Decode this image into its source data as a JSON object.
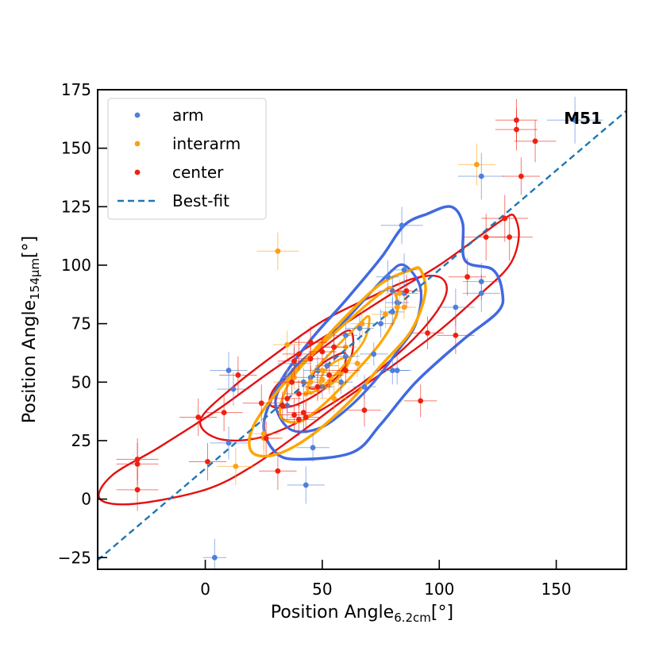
{
  "chart_data": {
    "type": "scatter",
    "annotation": "M51",
    "xlabel": "Position Angle",
    "xlabel_sub": "6.2cm",
    "xlabel_unit": "[°]",
    "ylabel": "Position Angle",
    "ylabel_sub": "154μm",
    "ylabel_unit": "[°]",
    "xlim": [
      -46,
      180
    ],
    "ylim": [
      -30,
      175
    ],
    "xticks": [
      0,
      50,
      100,
      150
    ],
    "yticks": [
      -25,
      0,
      25,
      50,
      75,
      100,
      125,
      150,
      175
    ],
    "xtick_labels": [
      "0",
      "50",
      "100",
      "150"
    ],
    "ytick_labels": [
      "−25",
      "0",
      "25",
      "50",
      "75",
      "100",
      "125",
      "150",
      "175"
    ],
    "legend_position": "upper-left",
    "colors": {
      "arm": "#4f7fd8",
      "interarm": "#ff9f14",
      "center": "#f02010",
      "best_fit": "#1f77b4",
      "arm_contour": "#4169e1",
      "interarm_contour": "#ffa500",
      "center_contour": "#e41010"
    },
    "legend": [
      {
        "key": "arm",
        "label": "arm"
      },
      {
        "key": "interarm",
        "label": "interarm"
      },
      {
        "key": "center",
        "label": "center"
      },
      {
        "key": "best_fit",
        "label": "Best-fit"
      }
    ],
    "best_fit": {
      "slope": 0.85,
      "intercept": 13
    },
    "series": [
      {
        "name": "arm",
        "points": [
          [
            84,
            117,
            9,
            8
          ],
          [
            85,
            98,
            6,
            7
          ],
          [
            78,
            95,
            5,
            7
          ],
          [
            80,
            89,
            6,
            6
          ],
          [
            85,
            88,
            6,
            6
          ],
          [
            82,
            84,
            5,
            5
          ],
          [
            80,
            80,
            5,
            6
          ],
          [
            75,
            75,
            6,
            6
          ],
          [
            66,
            73,
            6,
            6
          ],
          [
            60,
            70,
            5,
            5
          ],
          [
            55,
            65,
            5,
            6
          ],
          [
            72,
            62,
            6,
            5
          ],
          [
            60,
            61,
            6,
            6
          ],
          [
            52,
            57,
            5,
            5
          ],
          [
            48,
            55,
            6,
            6
          ],
          [
            45,
            52,
            6,
            5
          ],
          [
            42,
            50,
            6,
            6
          ],
          [
            58,
            50,
            5,
            5
          ],
          [
            50,
            48,
            5,
            5
          ],
          [
            68,
            48,
            5,
            5
          ],
          [
            38,
            58,
            7,
            7
          ],
          [
            80,
            55,
            7,
            6
          ],
          [
            82,
            55,
            6,
            6
          ],
          [
            35,
            40,
            6,
            6
          ],
          [
            46,
            22,
            7,
            6
          ],
          [
            43,
            6,
            8,
            8
          ],
          [
            10,
            55,
            8,
            8
          ],
          [
            12,
            47,
            7,
            7
          ],
          [
            10,
            24,
            8,
            7
          ],
          [
            118,
            138,
            10,
            10
          ],
          [
            118,
            93,
            8,
            8
          ],
          [
            118,
            88,
            8,
            8
          ],
          [
            107,
            82,
            8,
            8
          ],
          [
            158,
            162,
            12,
            10
          ],
          [
            4,
            -25,
            5,
            8
          ]
        ]
      },
      {
        "name": "interarm",
        "points": [
          [
            116,
            143,
            8,
            9
          ],
          [
            31,
            106,
            9,
            8
          ],
          [
            83,
            88,
            6,
            6
          ],
          [
            85,
            82,
            5,
            5
          ],
          [
            82,
            82,
            5,
            5
          ],
          [
            77,
            79,
            6,
            6
          ],
          [
            67,
            75,
            5,
            5
          ],
          [
            60,
            65,
            5,
            5
          ],
          [
            35,
            66,
            6,
            6
          ],
          [
            65,
            58,
            5,
            6
          ],
          [
            50,
            55,
            5,
            5
          ],
          [
            57,
            54,
            6,
            6
          ],
          [
            38,
            52,
            6,
            5
          ],
          [
            50,
            51,
            5,
            5
          ],
          [
            53,
            50,
            5,
            5
          ],
          [
            45,
            50,
            6,
            6
          ],
          [
            35,
            50,
            6,
            6
          ],
          [
            48,
            47,
            5,
            5
          ],
          [
            43,
            45,
            5,
            5
          ],
          [
            55,
            43,
            6,
            6
          ],
          [
            25,
            26,
            7,
            7
          ],
          [
            25,
            28,
            7,
            7
          ],
          [
            13,
            14,
            8,
            8
          ]
        ]
      },
      {
        "name": "center",
        "points": [
          [
            133,
            162,
            9,
            9
          ],
          [
            133,
            158,
            9,
            9
          ],
          [
            141,
            153,
            9,
            9
          ],
          [
            135,
            138,
            8,
            8
          ],
          [
            128,
            120,
            10,
            10
          ],
          [
            120,
            112,
            10,
            10
          ],
          [
            130,
            112,
            10,
            10
          ],
          [
            112,
            95,
            8,
            8
          ],
          [
            95,
            71,
            7,
            7
          ],
          [
            107,
            70,
            8,
            8
          ],
          [
            86,
            89,
            7,
            7
          ],
          [
            45,
            67,
            7,
            7
          ],
          [
            40,
            62,
            7,
            7
          ],
          [
            45,
            60,
            6,
            6
          ],
          [
            50,
            63,
            6,
            6
          ],
          [
            55,
            65,
            6,
            6
          ],
          [
            38,
            59,
            7,
            7
          ],
          [
            53,
            53,
            6,
            6
          ],
          [
            60,
            55,
            6,
            6
          ],
          [
            48,
            48,
            6,
            6
          ],
          [
            37,
            50,
            6,
            6
          ],
          [
            40,
            45,
            6,
            6
          ],
          [
            35,
            43,
            6,
            6
          ],
          [
            33,
            40,
            6,
            6
          ],
          [
            42,
            37,
            7,
            7
          ],
          [
            38,
            36,
            7,
            7
          ],
          [
            43,
            35,
            7,
            7
          ],
          [
            40,
            34,
            7,
            7
          ],
          [
            14,
            53,
            8,
            8
          ],
          [
            -3,
            35,
            8,
            8
          ],
          [
            8,
            37,
            8,
            8
          ],
          [
            24,
            41,
            8,
            8
          ],
          [
            26,
            26,
            7,
            7
          ],
          [
            31,
            12,
            8,
            8
          ],
          [
            1,
            16,
            8,
            8
          ],
          [
            -29,
            17,
            9,
            9
          ],
          [
            -29,
            15,
            9,
            9
          ],
          [
            -29,
            4,
            9,
            9
          ],
          [
            92,
            42,
            7,
            7
          ],
          [
            68,
            38,
            7,
            7
          ]
        ]
      }
    ],
    "contours": [
      {
        "name": "arm",
        "level": "outer",
        "points": [
          [
            95,
            122
          ],
          [
            105,
            125
          ],
          [
            110,
            118
          ],
          [
            111,
            102
          ],
          [
            123,
            98
          ],
          [
            127,
            88
          ],
          [
            125,
            80
          ],
          [
            110,
            68
          ],
          [
            90,
            50
          ],
          [
            75,
            32
          ],
          [
            63,
            20
          ],
          [
            40,
            17
          ],
          [
            30,
            20
          ],
          [
            25,
            32
          ],
          [
            32,
            50
          ],
          [
            45,
            68
          ],
          [
            60,
            85
          ],
          [
            75,
            103
          ],
          [
            85,
            117
          ],
          [
            95,
            122
          ]
        ]
      },
      {
        "name": "arm",
        "level": "mid",
        "points": [
          [
            85,
            100
          ],
          [
            92,
            90
          ],
          [
            90,
            75
          ],
          [
            82,
            63
          ],
          [
            72,
            50
          ],
          [
            60,
            38
          ],
          [
            48,
            30
          ],
          [
            36,
            30
          ],
          [
            30,
            42
          ],
          [
            38,
            56
          ],
          [
            52,
            68
          ],
          [
            65,
            82
          ],
          [
            78,
            96
          ],
          [
            85,
            100
          ]
        ]
      },
      {
        "name": "interarm",
        "level": "outer",
        "points": [
          [
            92,
            98
          ],
          [
            94,
            88
          ],
          [
            88,
            72
          ],
          [
            75,
            57
          ],
          [
            62,
            42
          ],
          [
            45,
            27
          ],
          [
            30,
            19
          ],
          [
            20,
            20
          ],
          [
            20,
            30
          ],
          [
            30,
            45
          ],
          [
            45,
            62
          ],
          [
            60,
            78
          ],
          [
            75,
            92
          ],
          [
            88,
            98
          ],
          [
            92,
            98
          ]
        ]
      },
      {
        "name": "interarm",
        "level": "mid",
        "points": [
          [
            80,
            90
          ],
          [
            82,
            80
          ],
          [
            75,
            67
          ],
          [
            62,
            52
          ],
          [
            50,
            40
          ],
          [
            40,
            33
          ],
          [
            32,
            36
          ],
          [
            36,
            50
          ],
          [
            48,
            64
          ],
          [
            62,
            77
          ],
          [
            75,
            88
          ],
          [
            80,
            90
          ]
        ]
      },
      {
        "name": "interarm",
        "level": "inner",
        "points": [
          [
            70,
            78
          ],
          [
            68,
            68
          ],
          [
            60,
            58
          ],
          [
            50,
            48
          ],
          [
            44,
            46
          ],
          [
            46,
            54
          ],
          [
            55,
            64
          ],
          [
            65,
            74
          ],
          [
            70,
            78
          ]
        ]
      },
      {
        "name": "interarm",
        "level": "core",
        "points": [
          [
            62,
            60
          ],
          [
            58,
            53
          ],
          [
            52,
            48
          ],
          [
            49,
            50
          ],
          [
            52,
            56
          ],
          [
            58,
            60
          ],
          [
            62,
            60
          ]
        ]
      },
      {
        "name": "center",
        "level": "outer",
        "points": [
          [
            128,
            120
          ],
          [
            132,
            121
          ],
          [
            134,
            112
          ],
          [
            130,
            100
          ],
          [
            118,
            88
          ],
          [
            100,
            72
          ],
          [
            80,
            57
          ],
          [
            60,
            43
          ],
          [
            40,
            28
          ],
          [
            20,
            14
          ],
          [
            0,
            4
          ],
          [
            -30,
            -2
          ],
          [
            -45,
            0
          ],
          [
            -40,
            10
          ],
          [
            -20,
            22
          ],
          [
            5,
            38
          ],
          [
            30,
            56
          ],
          [
            55,
            72
          ],
          [
            80,
            88
          ],
          [
            100,
            100
          ],
          [
            118,
            113
          ],
          [
            128,
            120
          ]
        ]
      },
      {
        "name": "center",
        "level": "mid",
        "points": [
          [
            100,
            95
          ],
          [
            103,
            88
          ],
          [
            95,
            75
          ],
          [
            80,
            60
          ],
          [
            62,
            46
          ],
          [
            42,
            34
          ],
          [
            22,
            26
          ],
          [
            5,
            26
          ],
          [
            -2,
            34
          ],
          [
            12,
            48
          ],
          [
            30,
            62
          ],
          [
            50,
            76
          ],
          [
            70,
            86
          ],
          [
            88,
            94
          ],
          [
            100,
            95
          ]
        ]
      },
      {
        "name": "center",
        "level": "inner",
        "points": [
          [
            62,
            72
          ],
          [
            62,
            60
          ],
          [
            52,
            48
          ],
          [
            38,
            40
          ],
          [
            28,
            40
          ],
          [
            30,
            48
          ],
          [
            42,
            58
          ],
          [
            52,
            66
          ],
          [
            62,
            72
          ]
        ]
      },
      {
        "name": "center",
        "level": "core",
        "points": [
          [
            60,
            62
          ],
          [
            58,
            54
          ],
          [
            50,
            48
          ],
          [
            44,
            48
          ],
          [
            48,
            56
          ],
          [
            55,
            61
          ],
          [
            60,
            62
          ]
        ]
      }
    ]
  }
}
